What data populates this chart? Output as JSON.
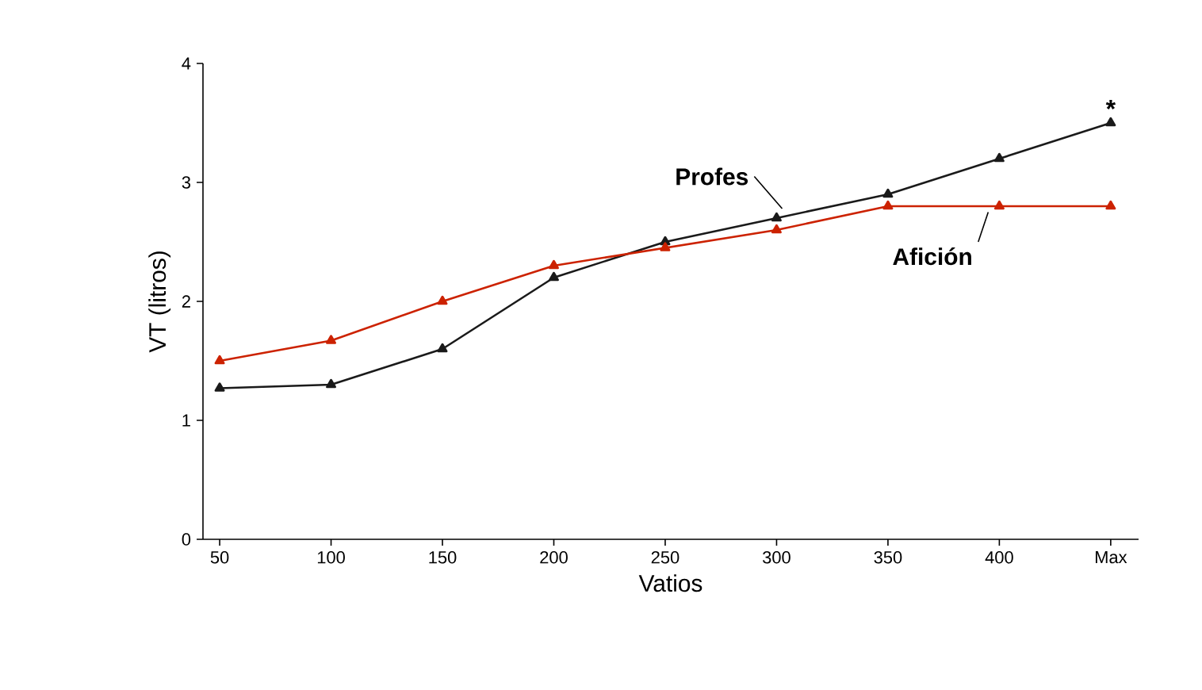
{
  "chart_data": {
    "type": "line",
    "xlabel": "Vatios",
    "ylabel": "VT (litros)",
    "categories": [
      "50",
      "100",
      "150",
      "200",
      "250",
      "300",
      "350",
      "400",
      "Max"
    ],
    "series": [
      {
        "name": "Profes",
        "color": "#1a1a1a",
        "values": [
          1.27,
          1.3,
          1.6,
          2.2,
          2.5,
          2.7,
          2.9,
          3.2,
          3.5
        ]
      },
      {
        "name": "Afición",
        "color": "#cc2200",
        "values": [
          1.5,
          1.67,
          2.0,
          2.3,
          2.45,
          2.6,
          2.8,
          2.8,
          2.8
        ]
      }
    ],
    "ylim": [
      0,
      4
    ],
    "yticks": [
      0,
      1,
      2,
      3,
      4
    ],
    "marker": "triangle",
    "line_style": "solid",
    "legend": false,
    "grid": false,
    "annotations": [
      {
        "text": "*",
        "x": "Max",
        "y": 3.5
      }
    ]
  }
}
